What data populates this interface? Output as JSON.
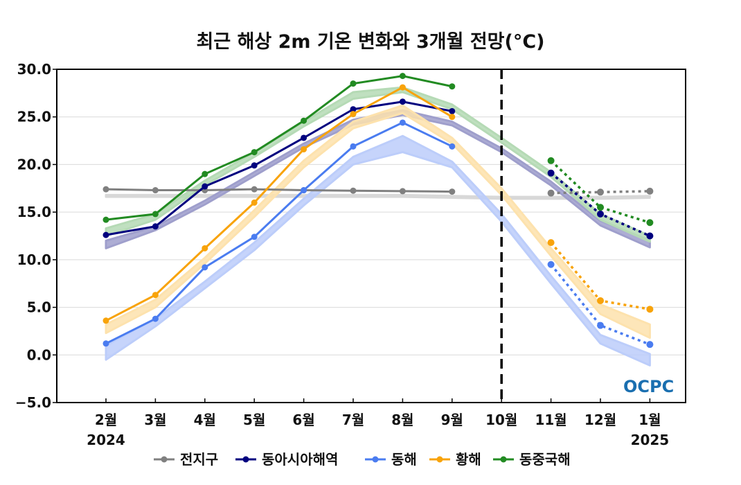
{
  "chart_data": {
    "type": "line",
    "title": "최근 해상 2m 기온 변화와 3개월 전망(°C)",
    "xlabel": "",
    "ylabel": "",
    "ylim": [
      -5,
      30
    ],
    "yticks": [
      -5,
      0,
      5,
      10,
      15,
      20,
      25,
      30
    ],
    "ytick_labels": [
      "−5.0",
      "0.0",
      "5.0",
      "10.0",
      "15.0",
      "20.0",
      "25.0",
      "30.0"
    ],
    "categories": [
      "2월",
      "3월",
      "4월",
      "5월",
      "6월",
      "7월",
      "8월",
      "9월",
      "10월",
      "11월",
      "12월",
      "1월"
    ],
    "year_labels": {
      "start": "2024",
      "end": "2025"
    },
    "forecast_divider_category": "10월",
    "grid": true,
    "legend_position": "bottom",
    "logo": "OCPC",
    "series": [
      {
        "name": "전지구",
        "color": "#808080",
        "band_color": "#d8d8d8",
        "observed": [
          17.4,
          17.3,
          17.3,
          17.4,
          17.3,
          17.25,
          17.2,
          17.15,
          null,
          null,
          null,
          null
        ],
        "forecast": [
          null,
          null,
          null,
          null,
          null,
          null,
          null,
          null,
          null,
          17.0,
          17.1,
          17.2
        ],
        "climatology_lower": [
          16.6,
          16.6,
          16.6,
          16.6,
          16.6,
          16.6,
          16.6,
          16.5,
          16.4,
          16.4,
          16.4,
          16.5
        ],
        "climatology_upper": [
          16.8,
          16.8,
          16.8,
          16.8,
          16.8,
          16.8,
          16.8,
          16.7,
          16.6,
          16.6,
          16.6,
          16.7
        ]
      },
      {
        "name": "동아시아해역",
        "color": "#00007f",
        "band_color": "#9f9fcc",
        "observed": [
          12.6,
          13.5,
          17.7,
          19.9,
          22.8,
          25.8,
          26.6,
          25.6,
          null,
          null,
          null,
          null
        ],
        "forecast": [
          null,
          null,
          null,
          null,
          null,
          null,
          null,
          null,
          null,
          19.1,
          14.8,
          12.5
        ],
        "climatology_lower": [
          11.2,
          13.1,
          15.8,
          18.8,
          21.8,
          24.2,
          25.2,
          24.1,
          21.3,
          17.8,
          13.6,
          11.3
        ],
        "climatology_upper": [
          12.0,
          13.5,
          16.2,
          19.2,
          22.2,
          24.7,
          25.7,
          24.5,
          21.7,
          18.2,
          14.1,
          12.0
        ]
      },
      {
        "name": "동해",
        "color": "#4a7cf0",
        "band_color": "#bccdfa",
        "observed": [
          1.2,
          3.8,
          9.2,
          12.4,
          17.3,
          21.9,
          24.4,
          21.9,
          null,
          null,
          null,
          null
        ],
        "forecast": [
          null,
          null,
          null,
          null,
          null,
          null,
          null,
          null,
          null,
          9.5,
          3.1,
          1.1
        ],
        "climatology_lower": [
          -0.5,
          3.0,
          7.0,
          11.0,
          15.7,
          20.0,
          21.3,
          19.7,
          14.0,
          7.5,
          1.2,
          -1.1
        ],
        "climatology_upper": [
          1.0,
          3.8,
          7.7,
          11.8,
          16.4,
          20.8,
          23.0,
          20.3,
          14.8,
          8.3,
          2.1,
          0.1
        ]
      },
      {
        "name": "황해",
        "color": "#f8a30a",
        "band_color": "#fde2ad",
        "observed": [
          3.6,
          6.3,
          11.2,
          16.0,
          21.6,
          25.3,
          28.1,
          25.0,
          null,
          null,
          null,
          null
        ],
        "forecast": [
          null,
          null,
          null,
          null,
          null,
          null,
          null,
          null,
          null,
          11.8,
          5.7,
          4.8
        ],
        "climatology_lower": [
          2.3,
          5.0,
          9.6,
          14.5,
          19.7,
          23.8,
          25.4,
          22.2,
          16.8,
          10.4,
          4.3,
          1.8
        ],
        "climatology_upper": [
          3.2,
          5.8,
          10.2,
          15.2,
          20.4,
          24.5,
          26.2,
          22.8,
          17.5,
          11.2,
          5.3,
          3.2
        ]
      },
      {
        "name": "동중국해",
        "color": "#228b22",
        "band_color": "#b5dab5",
        "observed": [
          14.2,
          14.8,
          19.0,
          21.3,
          24.6,
          28.5,
          29.3,
          28.2,
          null,
          null,
          null,
          null
        ],
        "forecast": [
          null,
          null,
          null,
          null,
          null,
          null,
          null,
          null,
          null,
          20.4,
          15.5,
          13.9
        ],
        "climatology_lower": [
          12.5,
          14.2,
          17.8,
          20.8,
          24.0,
          26.9,
          27.6,
          25.8,
          22.3,
          18.7,
          14.2,
          11.9
        ],
        "climatology_upper": [
          13.3,
          14.8,
          18.3,
          21.3,
          24.5,
          27.6,
          28.1,
          26.3,
          22.8,
          19.2,
          14.8,
          12.5
        ]
      }
    ]
  }
}
